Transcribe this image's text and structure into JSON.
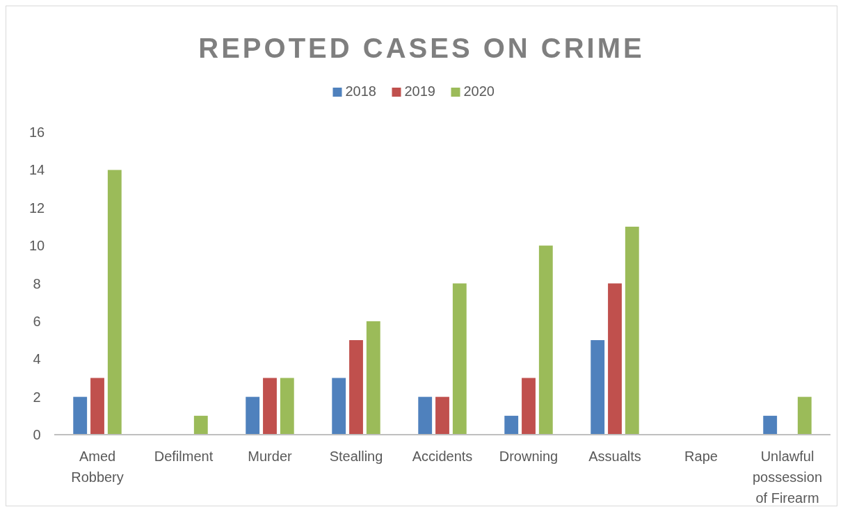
{
  "chart_data": {
    "type": "bar",
    "title": "REPOTED CASES ON CRIME",
    "categories": [
      "Amed Robbery",
      "Defilment",
      "Murder",
      "Stealling",
      "Accidents",
      "Drowning",
      "Assualts",
      "Rape",
      "Unlawful possession of Firearm"
    ],
    "series": [
      {
        "name": "2018",
        "color": "#4f81bd",
        "values": [
          2,
          0,
          2,
          3,
          2,
          1,
          5,
          0,
          1
        ]
      },
      {
        "name": "2019",
        "color": "#c0504d",
        "values": [
          3,
          0,
          3,
          5,
          2,
          3,
          8,
          0,
          0
        ]
      },
      {
        "name": "2020",
        "color": "#9bbb59",
        "values": [
          14,
          1,
          3,
          6,
          8,
          10,
          11,
          0,
          2
        ]
      }
    ],
    "ylim": [
      0,
      16
    ],
    "yticks": [
      0,
      2,
      4,
      6,
      8,
      10,
      12,
      14,
      16
    ],
    "grid": false,
    "legend": "top"
  }
}
